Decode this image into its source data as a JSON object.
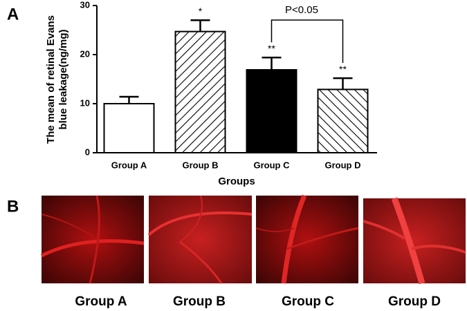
{
  "chart_data": {
    "type": "bar",
    "categories": [
      "Group A",
      "Group B",
      "Group C",
      "Group D"
    ],
    "values": [
      10,
      24.7,
      16.9,
      12.9
    ],
    "errors": [
      1.4,
      2.3,
      2.5,
      2.3
    ],
    "bar_styles": [
      "white",
      "hatch-right",
      "black",
      "hatch-left"
    ],
    "annotations": [
      null,
      "*",
      "**",
      "**"
    ],
    "comparison_label": "P<0.05",
    "y_label": [
      "The mean of retinal Evans",
      "blue leakage(ng/mg)"
    ],
    "x_label": "Groups",
    "ylim": [
      0,
      30
    ],
    "yticks": [
      0,
      10,
      20,
      30
    ]
  },
  "panel_labels": [
    "A",
    "B"
  ],
  "image_labels": [
    "Group A",
    "Group B",
    "Group C",
    "Group D"
  ]
}
